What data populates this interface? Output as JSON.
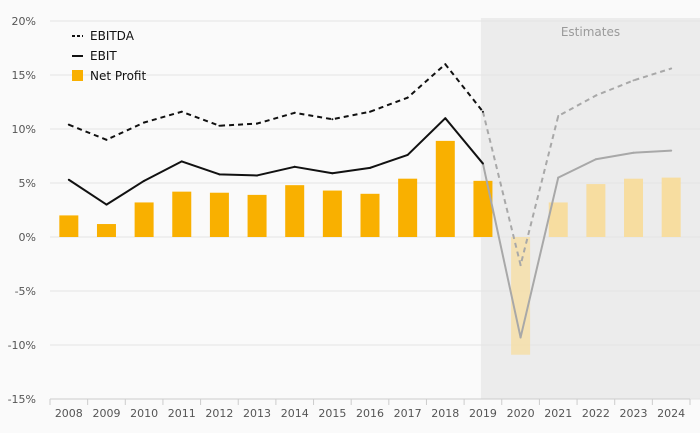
{
  "chart_data": {
    "type": "bar",
    "categories": [
      "2008",
      "2009",
      "2010",
      "2011",
      "2012",
      "2013",
      "2014",
      "2015",
      "2016",
      "2017",
      "2018",
      "2019",
      "2020",
      "2021",
      "2022",
      "2023",
      "2024"
    ],
    "ylim": [
      -15,
      20
    ],
    "yticks": [
      -15,
      -10,
      -5,
      0,
      5,
      10,
      15,
      20
    ],
    "ytick_labels": [
      "-15%",
      "-10%",
      "-5%",
      "0%",
      "5%",
      "10%",
      "15%",
      "20%"
    ],
    "estimates_label": "Estimates",
    "estimates_start": "2019",
    "series": [
      {
        "name": "EBITDA",
        "kind": "line",
        "style": "dashed",
        "values": [
          10.4,
          9.0,
          10.6,
          11.6,
          10.3,
          10.5,
          11.5,
          10.9,
          11.6,
          12.9,
          16.0,
          11.6,
          -2.6,
          11.2,
          13.1,
          14.5,
          15.6
        ]
      },
      {
        "name": "EBIT",
        "kind": "line",
        "style": "solid",
        "values": [
          5.3,
          3.0,
          5.2,
          7.0,
          5.8,
          5.7,
          6.5,
          5.9,
          6.4,
          7.6,
          11.0,
          6.8,
          -9.3,
          5.5,
          7.2,
          7.8,
          8.0
        ]
      },
      {
        "name": "Net Profit",
        "kind": "bar",
        "values": [
          2.0,
          1.2,
          3.2,
          4.2,
          4.1,
          3.9,
          4.8,
          4.3,
          4.0,
          5.4,
          8.9,
          5.2,
          -10.9,
          3.2,
          4.9,
          5.4,
          5.5
        ]
      }
    ],
    "colors": {
      "bar": "#f9b000",
      "bar_estimate": "#f7dda0",
      "line_actual": "#111111",
      "line_estimate": "#a8a8a8",
      "estimate_band": "#ececec",
      "grid": "#e4e4e4"
    },
    "legend_position": "top-left"
  }
}
